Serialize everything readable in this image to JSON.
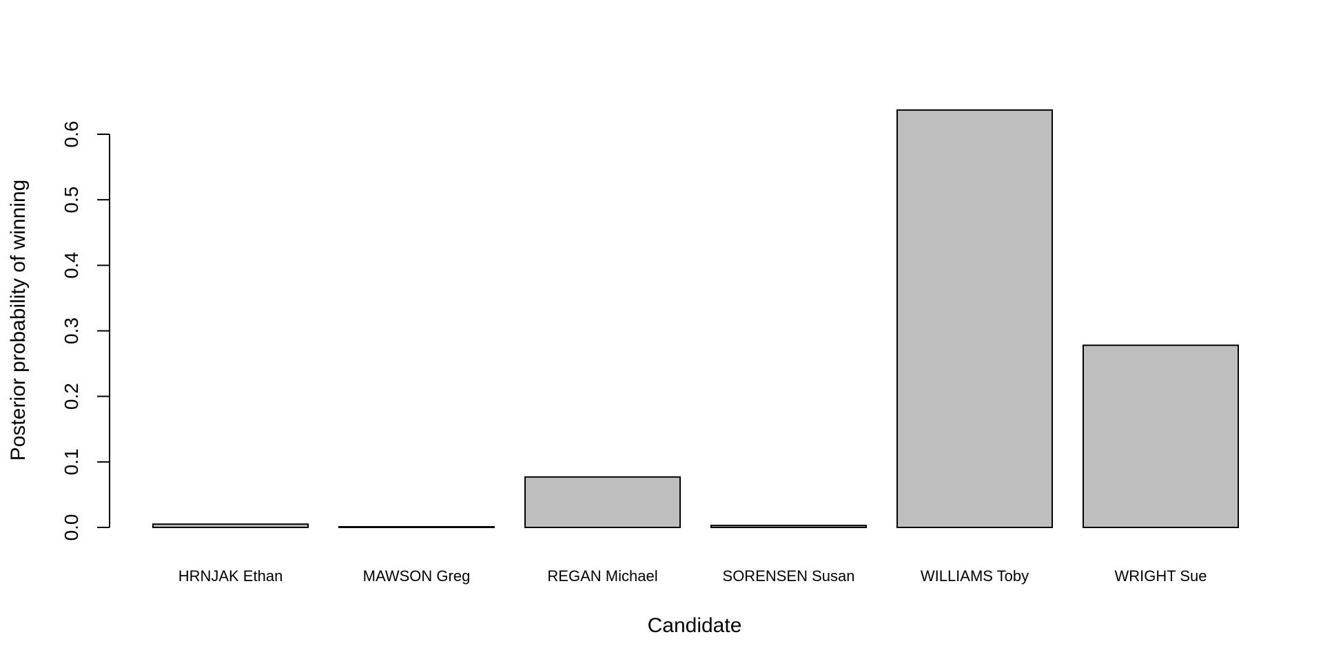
{
  "chart_data": {
    "type": "bar",
    "categories": [
      "HRNJAK Ethan",
      "MAWSON Greg",
      "REGAN Michael",
      "SORENSEN Susan",
      "WILLIAMS Toby",
      "WRIGHT Sue"
    ],
    "values": [
      0.005,
      0.001,
      0.077,
      0.003,
      0.637,
      0.278
    ],
    "xlabel": "Candidate",
    "ylabel": "Posterior probability of winning",
    "yticks": [
      "0.0",
      "0.1",
      "0.2",
      "0.3",
      "0.4",
      "0.5",
      "0.6"
    ],
    "ylim": [
      0,
      0.6
    ],
    "grid": false,
    "legend": "none",
    "bar_color": "#bebebe",
    "bar_border_color": "#000000"
  }
}
